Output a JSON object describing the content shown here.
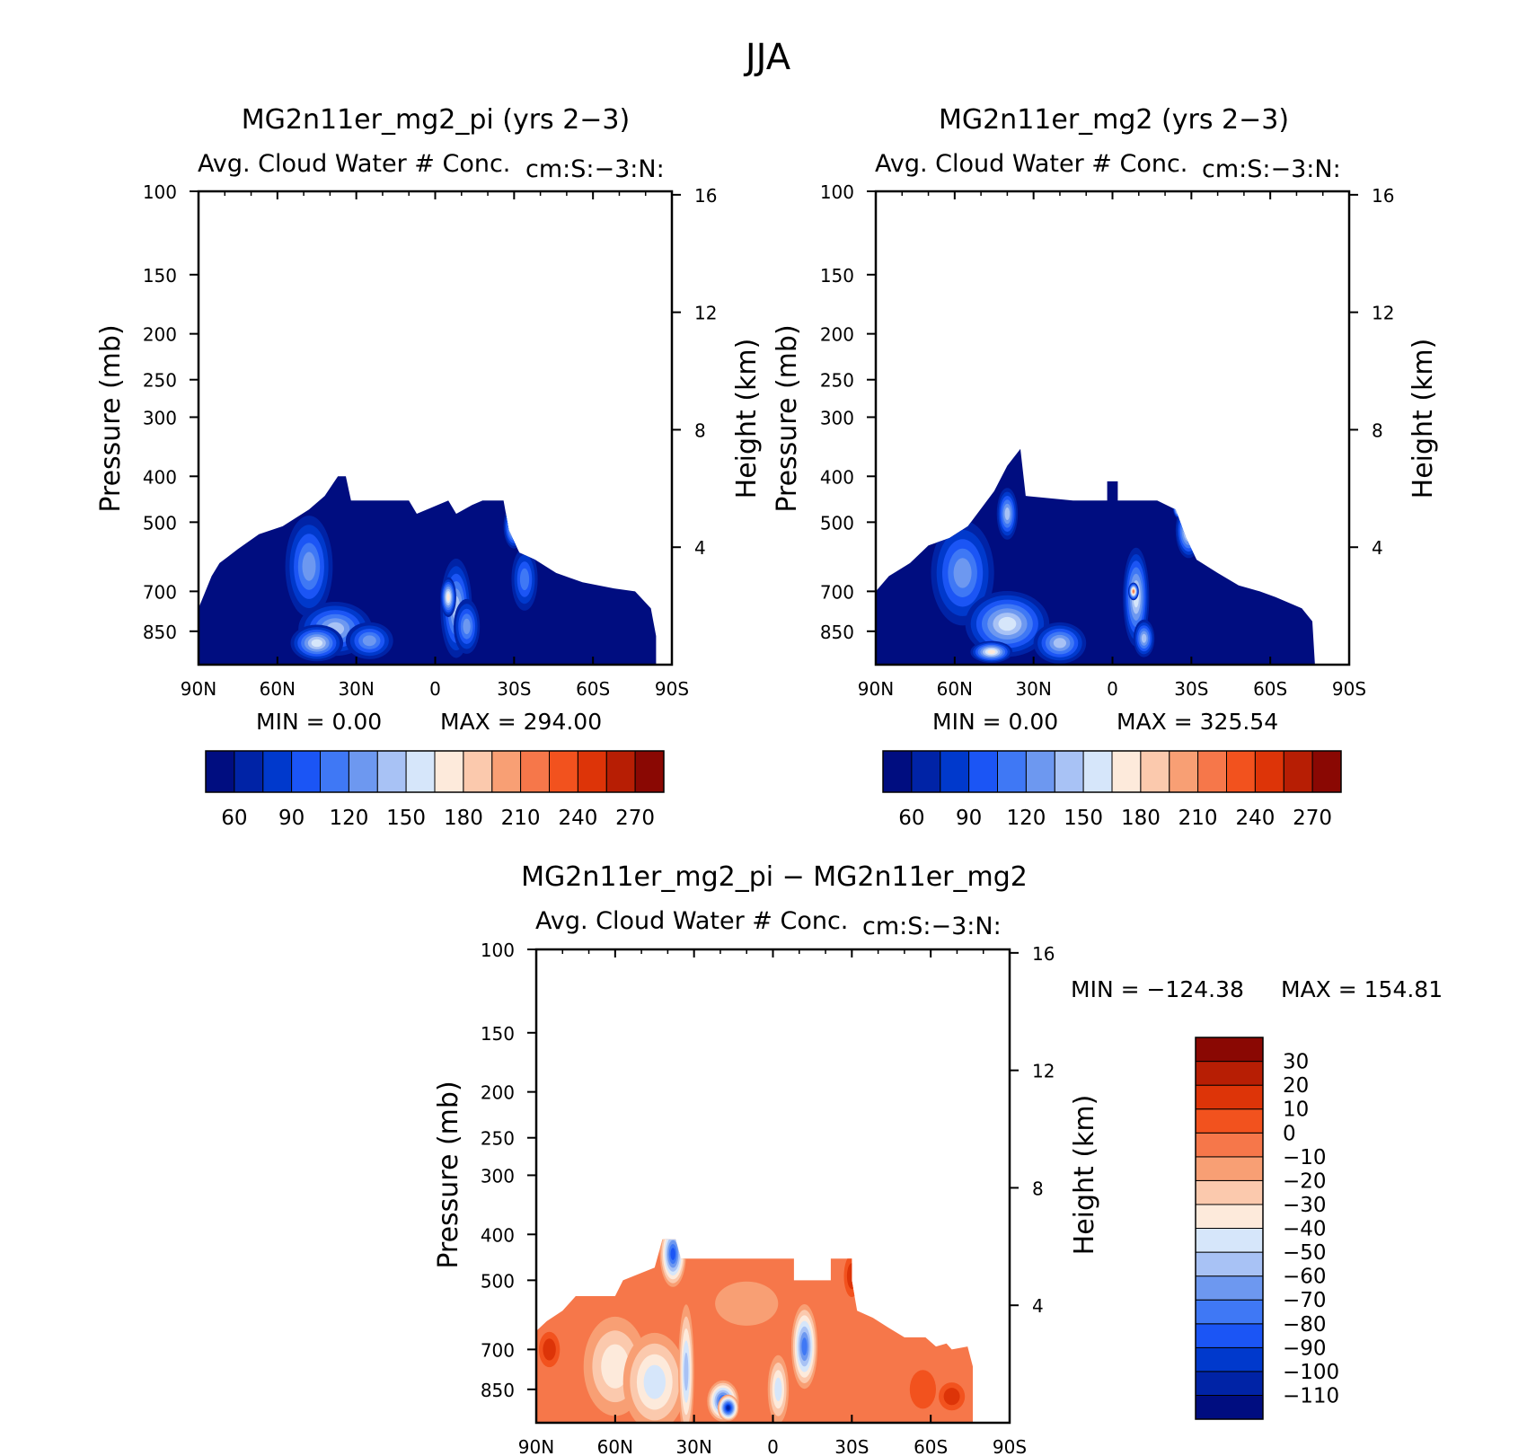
{
  "figure": {
    "title": "JJA"
  },
  "colors": {
    "positive_scale": [
      "#000d80",
      "#0023a6",
      "#0039cc",
      "#1b55f5",
      "#3f78f5",
      "#6d98f0",
      "#a8c2f5",
      "#d6e6fa",
      "#fdeadb",
      "#fbc9ad",
      "#f89f74",
      "#f6774a",
      "#f2521e",
      "#dd3408",
      "#b71e04",
      "#8a0803"
    ],
    "diff_scale": [
      "#000d80",
      "#0023a6",
      "#0039cc",
      "#1b55f5",
      "#3f78f5",
      "#6d98f0",
      "#a8c2f5",
      "#d6e6fa",
      "#fdeadb",
      "#fbc9ad",
      "#f89f74",
      "#f6774a",
      "#f2521e",
      "#dd3408",
      "#b71e04",
      "#8a0803"
    ]
  },
  "chart_data": [
    {
      "type": "heatmap",
      "title": "MG2n11er_mg2_pi (yrs 2−3)",
      "subtitle": "Avg. Cloud Water # Conc.",
      "subtitle_right": "cm:S:−3:N:",
      "ylabel": "Pressure (mb)",
      "ylabel_right": "Height (km)",
      "x_ticks": [
        "90N",
        "60N",
        "30N",
        "0",
        "30S",
        "60S",
        "90S"
      ],
      "x_range": [
        90,
        -90
      ],
      "y_ticks": [
        100,
        150,
        200,
        250,
        300,
        400,
        500,
        700,
        850
      ],
      "y_range": [
        100,
        1000
      ],
      "y_right_ticks": [
        16,
        12,
        8,
        4
      ],
      "min_text": "MIN =     0.00",
      "max_text": "MAX = 294.00",
      "min": 0.0,
      "max": 294.0,
      "colorbar_orientation": "horizontal",
      "colorbar_labels": [
        "60",
        "90",
        "120",
        "150",
        "180",
        "210",
        "240",
        "270"
      ],
      "top_profile": [
        [
          90,
          760
        ],
        [
          85,
          650
        ],
        [
          82,
          610
        ],
        [
          75,
          570
        ],
        [
          67,
          530
        ],
        [
          58,
          510
        ],
        [
          48,
          470
        ],
        [
          42,
          440
        ],
        [
          37,
          400
        ],
        [
          34,
          400
        ],
        [
          32,
          450
        ],
        [
          10,
          450
        ],
        [
          7,
          480
        ],
        [
          -5,
          450
        ],
        [
          -8,
          480
        ],
        [
          -14,
          460
        ],
        [
          -18,
          450
        ],
        [
          -26,
          450
        ],
        [
          -28,
          520
        ],
        [
          -32,
          580
        ],
        [
          -38,
          600
        ],
        [
          -46,
          640
        ],
        [
          -56,
          670
        ],
        [
          -68,
          690
        ],
        [
          -76,
          700
        ],
        [
          -82,
          760
        ],
        [
          -84,
          870
        ],
        [
          -84,
          1000
        ],
        [
          90,
          1000
        ]
      ],
      "blobs": [
        {
          "lat": 48,
          "p": 620,
          "rx": 9,
          "rp": 150,
          "level": 0.3
        },
        {
          "lat": 38,
          "p": 840,
          "rx": 14,
          "rp": 110,
          "level": 0.42
        },
        {
          "lat": 45,
          "p": 900,
          "rx": 10,
          "rp": 80,
          "level": 0.48
        },
        {
          "lat": 25,
          "p": 890,
          "rx": 9,
          "rp": 80,
          "level": 0.36
        },
        {
          "lat": -8,
          "p": 760,
          "rx": 6,
          "rp": 180,
          "level": 0.42
        },
        {
          "lat": -5,
          "p": 720,
          "rx": 3,
          "rp": 70,
          "level": 0.55
        },
        {
          "lat": -12,
          "p": 830,
          "rx": 5,
          "rp": 110,
          "level": 0.34
        },
        {
          "lat": -30,
          "p": 510,
          "rx": 4,
          "rp": 55,
          "level": 0.52
        },
        {
          "lat": -31,
          "p": 475,
          "rx": 2,
          "rp": 25,
          "level": 0.72
        },
        {
          "lat": -34,
          "p": 660,
          "rx": 5,
          "rp": 100,
          "level": 0.24
        }
      ]
    },
    {
      "type": "heatmap",
      "title": "MG2n11er_mg2 (yrs 2−3)",
      "subtitle": "Avg. Cloud Water # Conc.",
      "subtitle_right": "cm:S:−3:N:",
      "ylabel": "Pressure (mb)",
      "ylabel_right": "Height (km)",
      "x_ticks": [
        "90N",
        "60N",
        "30N",
        "0",
        "30S",
        "60S",
        "90S"
      ],
      "x_range": [
        90,
        -90
      ],
      "y_ticks": [
        100,
        150,
        200,
        250,
        300,
        400,
        500,
        700,
        850
      ],
      "y_range": [
        100,
        1000
      ],
      "y_right_ticks": [
        16,
        12,
        8,
        4
      ],
      "min_text": "MIN =     0.00",
      "max_text": "MAX = 325.54",
      "min": 0.0,
      "max": 325.54,
      "colorbar_orientation": "horizontal",
      "colorbar_labels": [
        "60",
        "90",
        "120",
        "150",
        "180",
        "210",
        "240",
        "270"
      ],
      "top_profile": [
        [
          90,
          700
        ],
        [
          85,
          650
        ],
        [
          77,
          610
        ],
        [
          70,
          560
        ],
        [
          62,
          540
        ],
        [
          55,
          510
        ],
        [
          45,
          430
        ],
        [
          40,
          380
        ],
        [
          35,
          350
        ],
        [
          33,
          440
        ],
        [
          15,
          450
        ],
        [
          2,
          450
        ],
        [
          2,
          410
        ],
        [
          -2,
          410
        ],
        [
          -2,
          450
        ],
        [
          -17,
          450
        ],
        [
          -24,
          470
        ],
        [
          -28,
          540
        ],
        [
          -32,
          600
        ],
        [
          -40,
          640
        ],
        [
          -48,
          680
        ],
        [
          -56,
          700
        ],
        [
          -62,
          720
        ],
        [
          -72,
          760
        ],
        [
          -76,
          810
        ],
        [
          -77,
          1000
        ],
        [
          90,
          1000
        ]
      ],
      "blobs": [
        {
          "lat": 57,
          "p": 640,
          "rx": 12,
          "rp": 160,
          "level": 0.3
        },
        {
          "lat": 40,
          "p": 820,
          "rx": 16,
          "rp": 130,
          "level": 0.44
        },
        {
          "lat": 46,
          "p": 940,
          "rx": 8,
          "rp": 50,
          "level": 0.56
        },
        {
          "lat": 20,
          "p": 900,
          "rx": 10,
          "rp": 90,
          "level": 0.4
        },
        {
          "lat": 40,
          "p": 480,
          "rx": 4,
          "rp": 60,
          "level": 0.38
        },
        {
          "lat": -9,
          "p": 720,
          "rx": 5,
          "rp": 170,
          "level": 0.46
        },
        {
          "lat": -8,
          "p": 700,
          "rx": 2,
          "rp": 30,
          "level": 0.7
        },
        {
          "lat": -12,
          "p": 880,
          "rx": 4,
          "rp": 80,
          "level": 0.4
        },
        {
          "lat": -29,
          "p": 520,
          "rx": 5,
          "rp": 70,
          "level": 0.5
        },
        {
          "lat": -25,
          "p": 465,
          "rx": 2,
          "rp": 25,
          "level": 0.8
        }
      ]
    },
    {
      "type": "heatmap",
      "title": "MG2n11er_mg2_pi − MG2n11er_mg2",
      "subtitle": "Avg. Cloud Water # Conc.",
      "subtitle_right": "cm:S:−3:N:",
      "ylabel": "Pressure (mb)",
      "ylabel_right": "Height (km)",
      "x_ticks": [
        "90N",
        "60N",
        "30N",
        "0",
        "30S",
        "60S",
        "90S"
      ],
      "x_range": [
        90,
        -90
      ],
      "y_ticks": [
        100,
        150,
        200,
        250,
        300,
        400,
        500,
        700,
        850
      ],
      "y_range": [
        100,
        1000
      ],
      "y_right_ticks": [
        16,
        12,
        8,
        4
      ],
      "min_text": "MIN = −124.38",
      "max_text": "MAX = 154.81",
      "min": -124.38,
      "max": 154.81,
      "colorbar_orientation": "vertical",
      "colorbar_labels": [
        "30",
        "20",
        "10",
        "0",
        "−10",
        "−20",
        "−30",
        "−40",
        "−50",
        "−60",
        "−70",
        "−80",
        "−90",
        "−100",
        "−110"
      ],
      "top_profile": [
        [
          90,
          640
        ],
        [
          86,
          610
        ],
        [
          80,
          580
        ],
        [
          75,
          540
        ],
        [
          60,
          540
        ],
        [
          57,
          500
        ],
        [
          45,
          470
        ],
        [
          42,
          410
        ],
        [
          37,
          410
        ],
        [
          35,
          450
        ],
        [
          -8,
          450
        ],
        [
          -8,
          500
        ],
        [
          -22,
          500
        ],
        [
          -22,
          450
        ],
        [
          -30,
          450
        ],
        [
          -30,
          500
        ],
        [
          -32,
          580
        ],
        [
          -38,
          600
        ],
        [
          -44,
          630
        ],
        [
          -50,
          660
        ],
        [
          -58,
          660
        ],
        [
          -62,
          690
        ],
        [
          -66,
          680
        ],
        [
          -68,
          700
        ],
        [
          -74,
          690
        ],
        [
          -76,
          760
        ],
        [
          -76,
          1000
        ],
        [
          90,
          1000
        ]
      ],
      "base_level": 0.72,
      "blobs": [
        {
          "lat": 40,
          "p": 430,
          "rx": 3,
          "rp": 50,
          "level": 0.05
        },
        {
          "lat": 38,
          "p": 440,
          "rx": 5,
          "rp": 70,
          "level": 0.22
        },
        {
          "lat": 19,
          "p": 900,
          "rx": 6,
          "rp": 90,
          "level": 0.18
        },
        {
          "lat": 17,
          "p": 930,
          "rx": 4,
          "rp": 60,
          "level": 0.08
        },
        {
          "lat": -10,
          "p": 680,
          "rx": 3,
          "rp": 90,
          "level": 0.06
        },
        {
          "lat": -12,
          "p": 690,
          "rx": 5,
          "rp": 140,
          "level": 0.25
        },
        {
          "lat": 60,
          "p": 760,
          "rx": 12,
          "rp": 180,
          "level": 0.52
        },
        {
          "lat": 45,
          "p": 820,
          "rx": 12,
          "rp": 200,
          "level": 0.48
        },
        {
          "lat": 33,
          "p": 780,
          "rx": 3,
          "rp": 260,
          "level": 0.4
        },
        {
          "lat": -2,
          "p": 850,
          "rx": 4,
          "rp": 140,
          "level": 0.45
        },
        {
          "lat": 85,
          "p": 700,
          "rx": 4,
          "rp": 60,
          "level": 0.88
        },
        {
          "lat": -30,
          "p": 490,
          "rx": 3,
          "rp": 50,
          "level": 0.88
        },
        {
          "lat": -57,
          "p": 850,
          "rx": 5,
          "rp": 80,
          "level": 0.82
        },
        {
          "lat": -68,
          "p": 880,
          "rx": 5,
          "rp": 60,
          "level": 0.86
        },
        {
          "lat": 10,
          "p": 560,
          "rx": 12,
          "rp": 60,
          "level": 0.66
        }
      ]
    }
  ]
}
